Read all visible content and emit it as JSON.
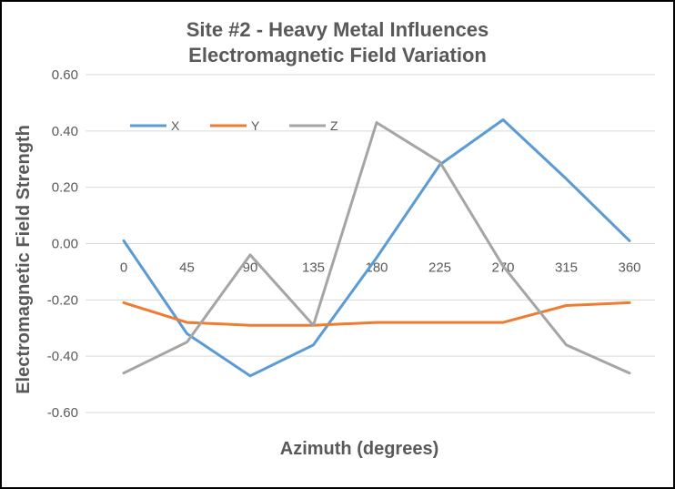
{
  "chart_data": {
    "type": "line",
    "title": "Site #2 - Heavy Metal Influences",
    "subtitle": "Electromagnetic Field Variation",
    "xlabel": "Azimuth (degrees)",
    "ylabel": "Electromagnetic Field Strength",
    "categories": [
      "0",
      "45",
      "90",
      "135",
      "180",
      "225",
      "270",
      "315",
      "360"
    ],
    "ylim": [
      -0.6,
      0.6
    ],
    "yticks": [
      "0.60",
      "0.40",
      "0.20",
      "0.00",
      "-0.20",
      "-0.40",
      "-0.60"
    ],
    "grid": true,
    "legend_position": "top-left",
    "series": [
      {
        "name": "X",
        "color": "#5b9bd5",
        "values": [
          0.01,
          -0.32,
          -0.47,
          -0.36,
          -0.05,
          0.28,
          0.44,
          0.23,
          0.01
        ]
      },
      {
        "name": "Y",
        "color": "#ed7d31",
        "values": [
          -0.21,
          -0.28,
          -0.29,
          -0.29,
          -0.28,
          -0.28,
          -0.28,
          -0.22,
          -0.21
        ]
      },
      {
        "name": "Z",
        "color": "#a5a5a5",
        "values": [
          -0.46,
          -0.35,
          -0.04,
          -0.29,
          0.43,
          0.29,
          -0.08,
          -0.36,
          -0.46
        ]
      }
    ]
  }
}
